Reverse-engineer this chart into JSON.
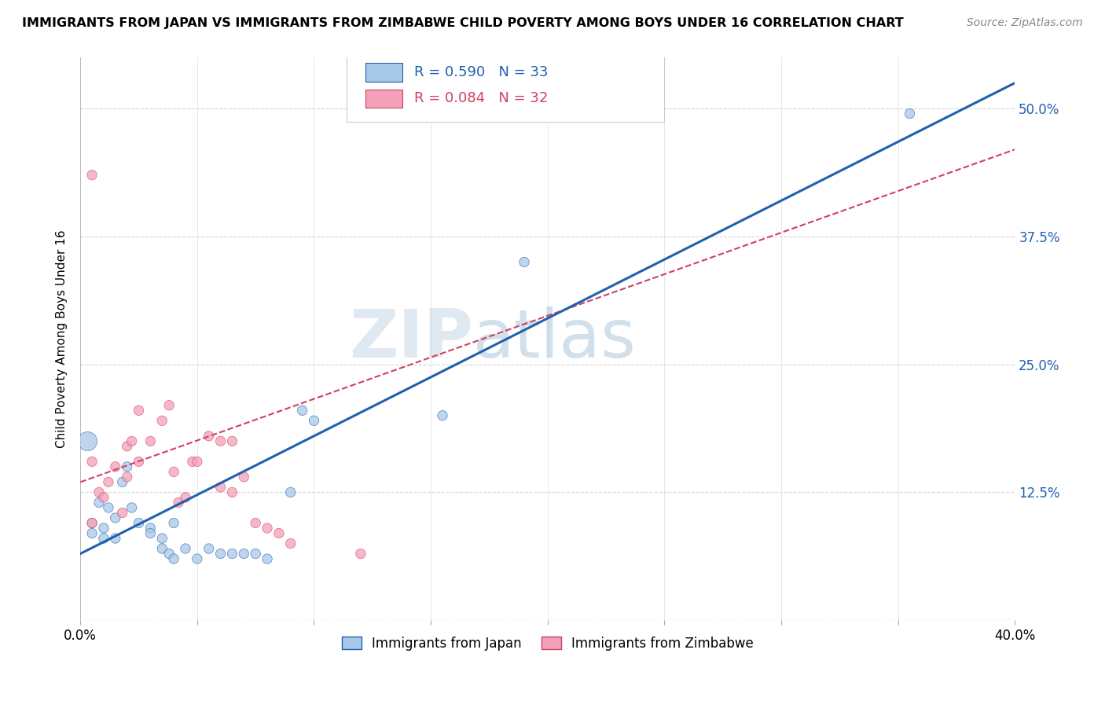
{
  "title": "IMMIGRANTS FROM JAPAN VS IMMIGRANTS FROM ZIMBABWE CHILD POVERTY AMONG BOYS UNDER 16 CORRELATION CHART",
  "source": "Source: ZipAtlas.com",
  "ylabel": "Child Poverty Among Boys Under 16",
  "x_min": 0.0,
  "x_max": 0.4,
  "y_min": 0.0,
  "y_max": 0.55,
  "x_ticks": [
    0.0,
    0.05,
    0.1,
    0.15,
    0.2,
    0.25,
    0.3,
    0.35,
    0.4
  ],
  "y_ticks": [
    0.0,
    0.125,
    0.25,
    0.375,
    0.5
  ],
  "y_tick_labels": [
    "",
    "12.5%",
    "25.0%",
    "37.5%",
    "50.0%"
  ],
  "japan_R": "0.590",
  "japan_N": "33",
  "zimbabwe_R": "0.084",
  "zimbabwe_N": "32",
  "japan_color": "#a8c8e8",
  "zimbabwe_color": "#f4a0b8",
  "japan_line_color": "#2060b0",
  "zimbabwe_line_color": "#d04060",
  "japan_line_x": [
    0.0,
    0.4
  ],
  "japan_line_y": [
    0.065,
    0.525
  ],
  "zimbabwe_line_x": [
    0.0,
    0.4
  ],
  "zimbabwe_line_y": [
    0.135,
    0.46
  ],
  "watermark_zip": "ZIP",
  "watermark_atlas": "atlas",
  "japan_scatter_x": [
    0.005,
    0.005,
    0.008,
    0.01,
    0.01,
    0.012,
    0.015,
    0.015,
    0.018,
    0.02,
    0.022,
    0.025,
    0.03,
    0.03,
    0.035,
    0.035,
    0.038,
    0.04,
    0.04,
    0.045,
    0.05,
    0.055,
    0.06,
    0.065,
    0.07,
    0.075,
    0.08,
    0.09,
    0.095,
    0.1,
    0.155,
    0.19,
    0.355
  ],
  "japan_scatter_y": [
    0.095,
    0.085,
    0.115,
    0.09,
    0.08,
    0.11,
    0.1,
    0.08,
    0.135,
    0.15,
    0.11,
    0.095,
    0.09,
    0.085,
    0.08,
    0.07,
    0.065,
    0.06,
    0.095,
    0.07,
    0.06,
    0.07,
    0.065,
    0.065,
    0.065,
    0.065,
    0.06,
    0.125,
    0.205,
    0.195,
    0.2,
    0.35,
    0.495
  ],
  "japan_scatter_size": [
    80,
    80,
    80,
    80,
    80,
    80,
    80,
    80,
    80,
    80,
    80,
    80,
    80,
    80,
    80,
    80,
    80,
    80,
    80,
    80,
    80,
    80,
    80,
    80,
    80,
    80,
    80,
    80,
    80,
    80,
    80,
    80,
    80
  ],
  "japan_big_dot_x": [
    0.003
  ],
  "japan_big_dot_y": [
    0.175
  ],
  "japan_big_dot_size": [
    300
  ],
  "zimbabwe_scatter_x": [
    0.005,
    0.005,
    0.008,
    0.01,
    0.012,
    0.015,
    0.018,
    0.02,
    0.02,
    0.022,
    0.025,
    0.025,
    0.03,
    0.035,
    0.038,
    0.04,
    0.042,
    0.045,
    0.048,
    0.05,
    0.055,
    0.06,
    0.06,
    0.065,
    0.065,
    0.07,
    0.075,
    0.08,
    0.085,
    0.09,
    0.12,
    0.005
  ],
  "zimbabwe_scatter_y": [
    0.155,
    0.095,
    0.125,
    0.12,
    0.135,
    0.15,
    0.105,
    0.17,
    0.14,
    0.175,
    0.155,
    0.205,
    0.175,
    0.195,
    0.21,
    0.145,
    0.115,
    0.12,
    0.155,
    0.155,
    0.18,
    0.175,
    0.13,
    0.175,
    0.125,
    0.14,
    0.095,
    0.09,
    0.085,
    0.075,
    0.065,
    0.435
  ],
  "zimbabwe_scatter_size": [
    80,
    80,
    80,
    80,
    80,
    80,
    80,
    80,
    80,
    80,
    80,
    80,
    80,
    80,
    80,
    80,
    80,
    80,
    80,
    80,
    80,
    80,
    80,
    80,
    80,
    80,
    80,
    80,
    80,
    80,
    80,
    80
  ]
}
